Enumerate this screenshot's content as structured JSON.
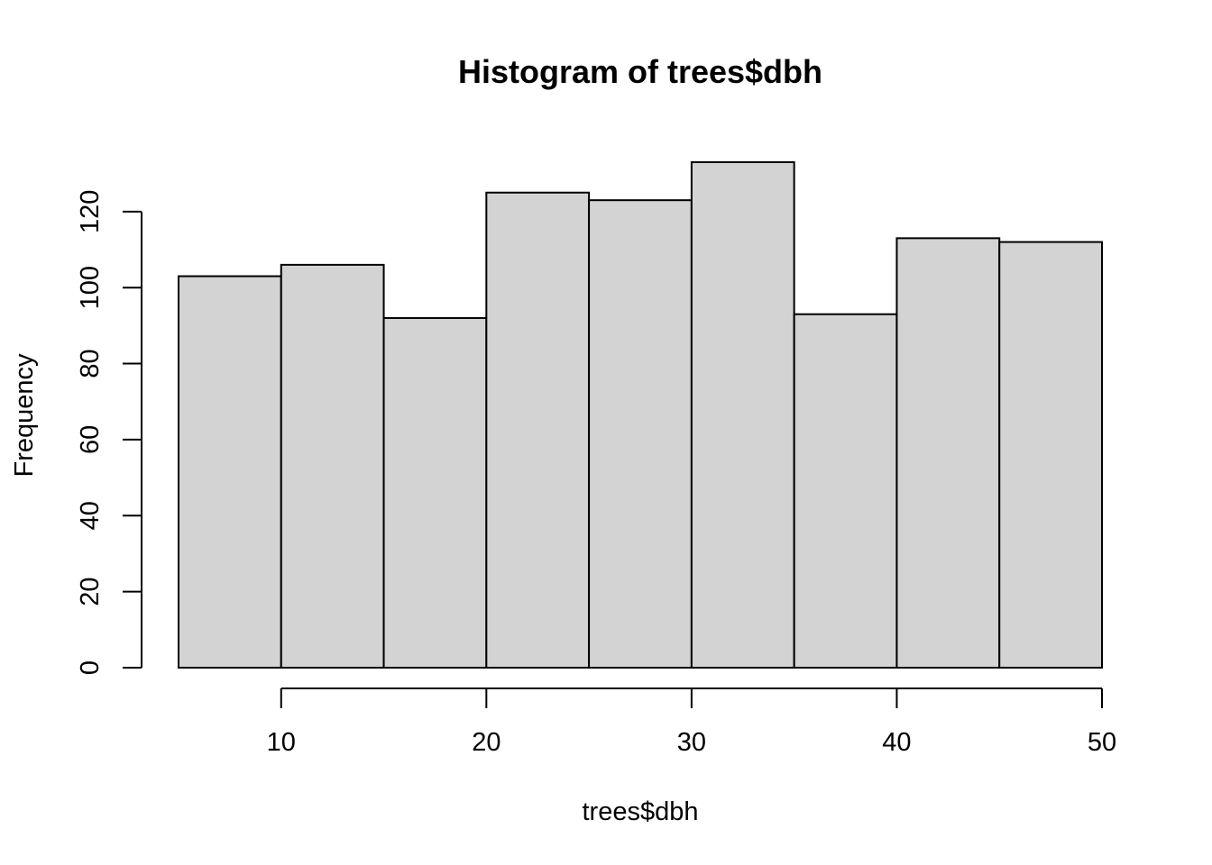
{
  "chart_data": {
    "type": "bar",
    "title": "Histogram of trees$dbh",
    "xlabel": "trees$dbh",
    "ylabel": "Frequency",
    "bins": [
      {
        "start": 5,
        "end": 10,
        "count": 103
      },
      {
        "start": 10,
        "end": 15,
        "count": 106
      },
      {
        "start": 15,
        "end": 20,
        "count": 92
      },
      {
        "start": 20,
        "end": 25,
        "count": 125
      },
      {
        "start": 25,
        "end": 30,
        "count": 123
      },
      {
        "start": 30,
        "end": 35,
        "count": 133
      },
      {
        "start": 35,
        "end": 40,
        "count": 93
      },
      {
        "start": 40,
        "end": 45,
        "count": 113
      },
      {
        "start": 45,
        "end": 50,
        "count": 112
      }
    ],
    "x_ticks": [
      10,
      20,
      30,
      40,
      50
    ],
    "y_ticks": [
      0,
      20,
      40,
      60,
      80,
      100,
      120
    ],
    "xlim": [
      5,
      50
    ],
    "ylim": [
      0,
      133
    ],
    "grid": false,
    "colors": {
      "bar_fill": "#d3d3d3",
      "bar_stroke": "#000000",
      "axis": "#000000",
      "background": "#ffffff"
    }
  }
}
